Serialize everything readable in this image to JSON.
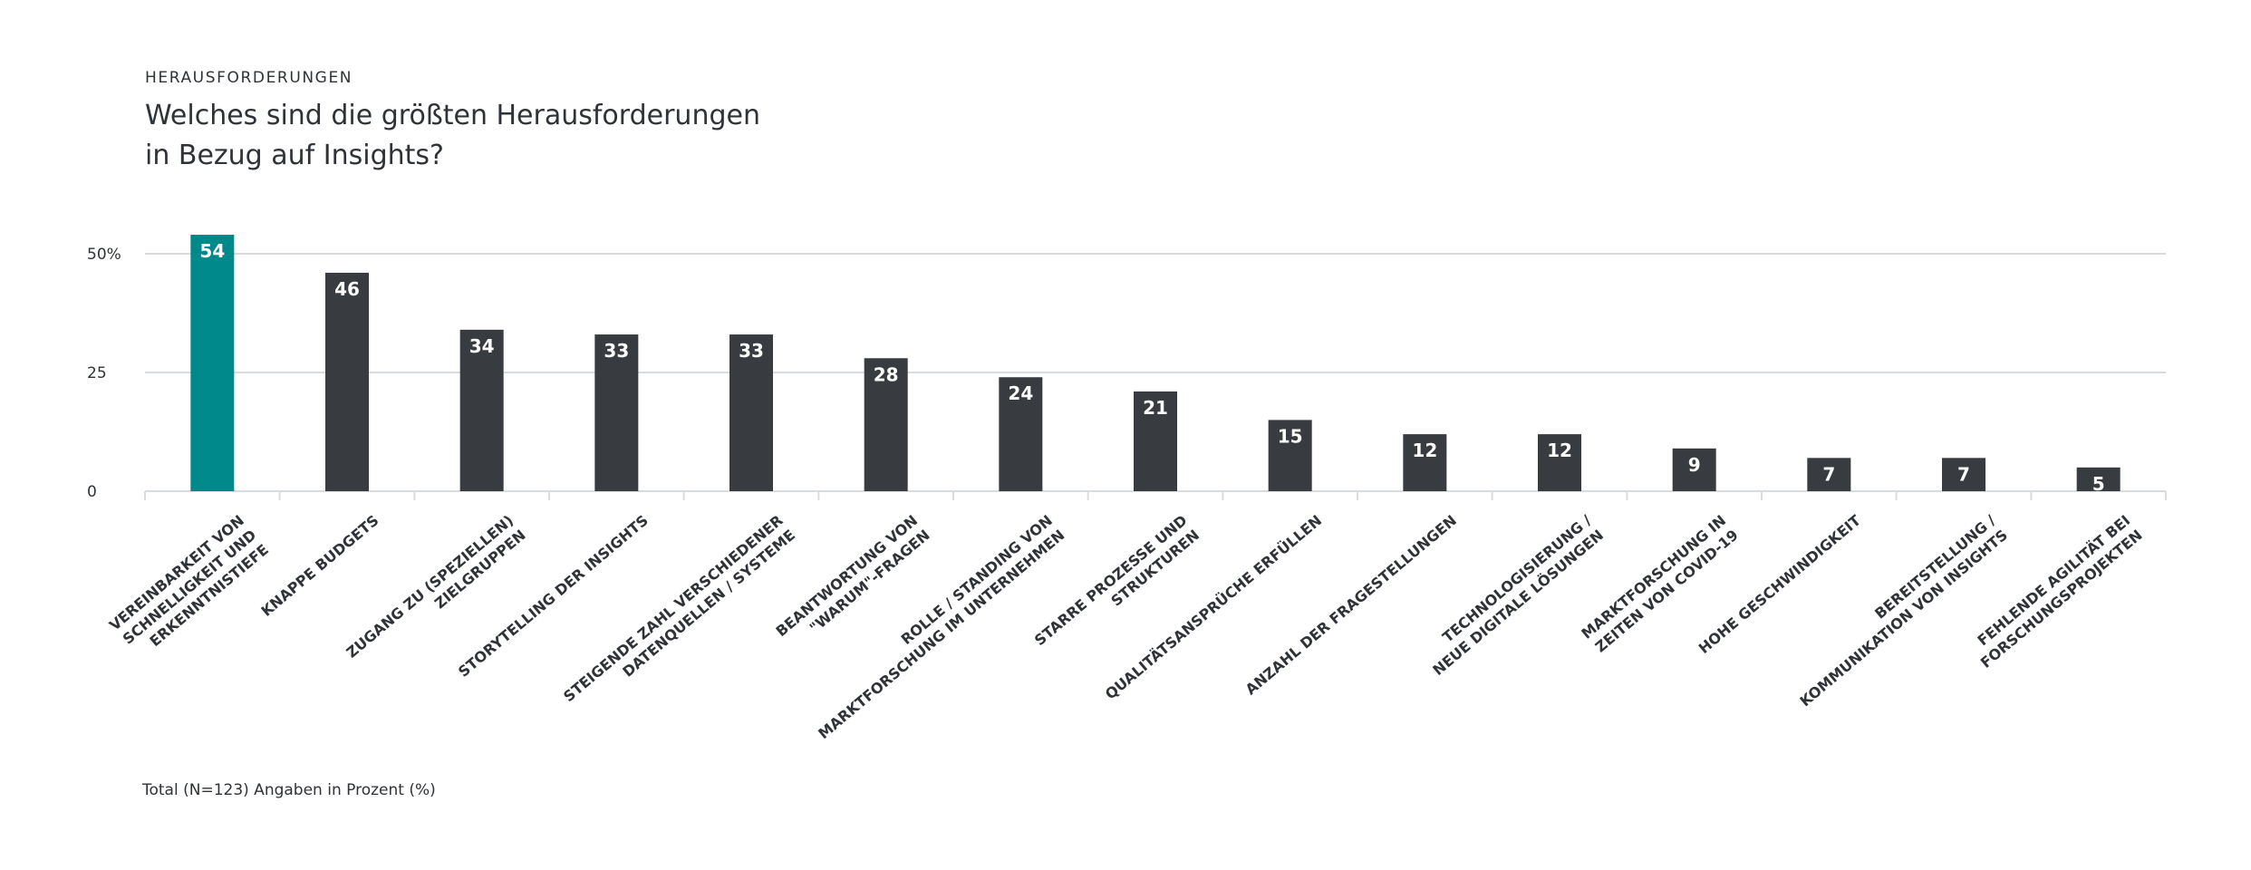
{
  "header": {
    "eyebrow": "HERAUSFORDERUNGEN",
    "title_line1": "Welches sind die größten Herausforderungen",
    "title_line2": "in Bezug auf Insights?"
  },
  "footnote": "Total (N=123) Angaben in Prozent (%)",
  "colors": {
    "highlight": "#00898a",
    "bar": "#383c40",
    "grid": "#d9dcde",
    "text": "#2f3236"
  },
  "chart_data": {
    "type": "bar",
    "title": "Welches sind die größten Herausforderungen in Bezug auf Insights?",
    "xlabel": "",
    "ylabel": "",
    "ylim": [
      0,
      57
    ],
    "yticks": [
      {
        "value": 0,
        "label": "0"
      },
      {
        "value": 25,
        "label": "25"
      },
      {
        "value": 50,
        "label": "50%"
      }
    ],
    "grid": true,
    "legend": "none",
    "highlight_index": 0,
    "categories": [
      [
        "VEREINBARKEIT VON",
        "SCHNELLIGKEIT UND",
        "ERKENNTNISTIEFE"
      ],
      [
        "KNAPPE BUDGETS"
      ],
      [
        "ZUGANG ZU (SPEZIELLEN)",
        "ZIELGRUPPEN"
      ],
      [
        "STORYTELLING  DER INSIGHTS"
      ],
      [
        "STEIGENDE ZAHL VERSCHIEDENER",
        "DATENQUELLEN / SYSTEME"
      ],
      [
        "BEANTWORTUNG VON",
        "\"WARUM\"-FRAGEN"
      ],
      [
        "ROLLE / STANDING VON",
        "MARKTFORSCHUNG IM UNTERNEHMEN"
      ],
      [
        "STARRE PROZESSE UND",
        "STRUKTUREN"
      ],
      [
        "QUALITÄTSANSPRÜCHE ERFÜLLEN"
      ],
      [
        "ANZAHL DER FRAGESTELLUNGEN"
      ],
      [
        "TECHNOLOGISIERUNG /",
        "NEUE DIGITALE LÖSUNGEN"
      ],
      [
        "MARKTFORSCHUNG IN",
        "ZEITEN VON COVID-19"
      ],
      [
        "HOHE GESCHWINDIGKEIT"
      ],
      [
        "BEREITSTELLUNG /",
        "KOMMUNIKATION VON INSIGHTS"
      ],
      [
        "FEHLENDE AGILITÄT BEI",
        "FORSCHUNGSPROJEKTEN"
      ]
    ],
    "values": [
      54,
      46,
      34,
      33,
      33,
      28,
      24,
      21,
      15,
      12,
      12,
      9,
      7,
      7,
      5
    ]
  }
}
